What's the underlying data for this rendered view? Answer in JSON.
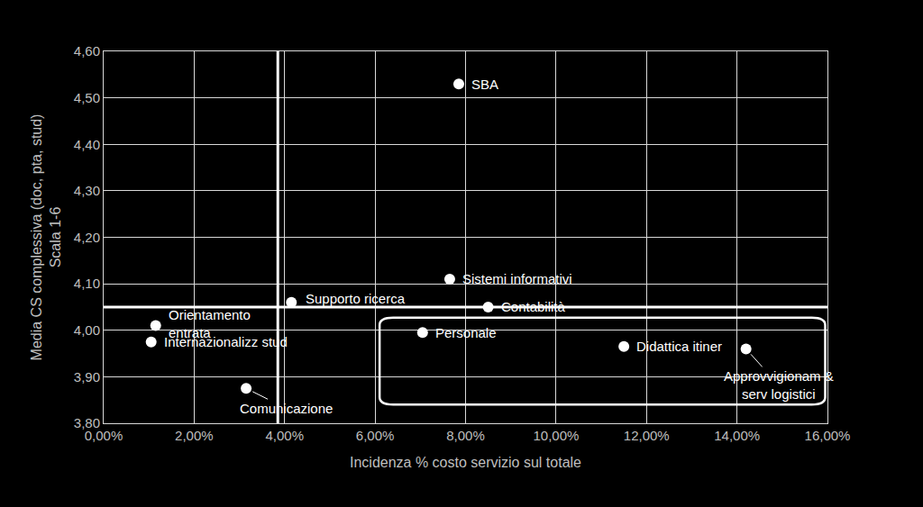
{
  "chart_data": {
    "type": "scatter",
    "x_label": "Incidenza % costo servizio sul totale",
    "y_label": "Media CS complessiva (doc, pta, stud)\nScala 1-6",
    "points": [
      {
        "label": "SBA",
        "x": 7.85,
        "y": 4.53
      },
      {
        "label": "Sistemi informativi",
        "x": 7.65,
        "y": 4.11
      },
      {
        "label": "Supporto ricerca",
        "x": 4.15,
        "y": 4.06
      },
      {
        "label": "Contabilità",
        "x": 8.5,
        "y": 4.05
      },
      {
        "label": "Orientamento\nentrata",
        "x": 1.15,
        "y": 4.01
      },
      {
        "label": "Internazionalizz stud",
        "x": 1.05,
        "y": 3.975
      },
      {
        "label": "Personale",
        "x": 7.05,
        "y": 3.995
      },
      {
        "label": "Didattica itiner",
        "x": 11.5,
        "y": 3.965
      },
      {
        "label": "Approvvigionam &\nserv logistici",
        "x": 14.2,
        "y": 3.96
      },
      {
        "label": "Comunicazione",
        "x": 3.15,
        "y": 3.875
      }
    ],
    "reference_lines": {
      "x": 3.85,
      "y": 4.05
    },
    "highlight": [
      "Personale",
      "Didattica itiner",
      "Approvvigionam &\nserv logistici"
    ],
    "color": "#ffffff",
    "marker": "circle",
    "grid": true,
    "xlim": [
      0,
      16
    ],
    "xticks": [
      {
        "value": 0,
        "label": "0,00%"
      },
      {
        "value": 2,
        "label": "2,00%"
      },
      {
        "value": 4,
        "label": "4,00%"
      },
      {
        "value": 6,
        "label": "6,00%"
      },
      {
        "value": 8,
        "label": "8,00%"
      },
      {
        "value": 10,
        "label": "10,00%"
      },
      {
        "value": 12,
        "label": "12,00%"
      },
      {
        "value": 14,
        "label": "14,00%"
      },
      {
        "value": 16,
        "label": "16,00%"
      }
    ],
    "ylim": [
      3.8,
      4.6
    ],
    "yticks": [
      {
        "value": 3.8,
        "label": "3,80"
      },
      {
        "value": 3.9,
        "label": "3,90"
      },
      {
        "value": 4.0,
        "label": "4,00"
      },
      {
        "value": 4.1,
        "label": "4,10"
      },
      {
        "value": 4.2,
        "label": "4,20"
      },
      {
        "value": 4.3,
        "label": "4,30"
      },
      {
        "value": 4.4,
        "label": "4,40"
      },
      {
        "value": 4.5,
        "label": "4,50"
      },
      {
        "value": 4.6,
        "label": "4,60"
      }
    ]
  }
}
